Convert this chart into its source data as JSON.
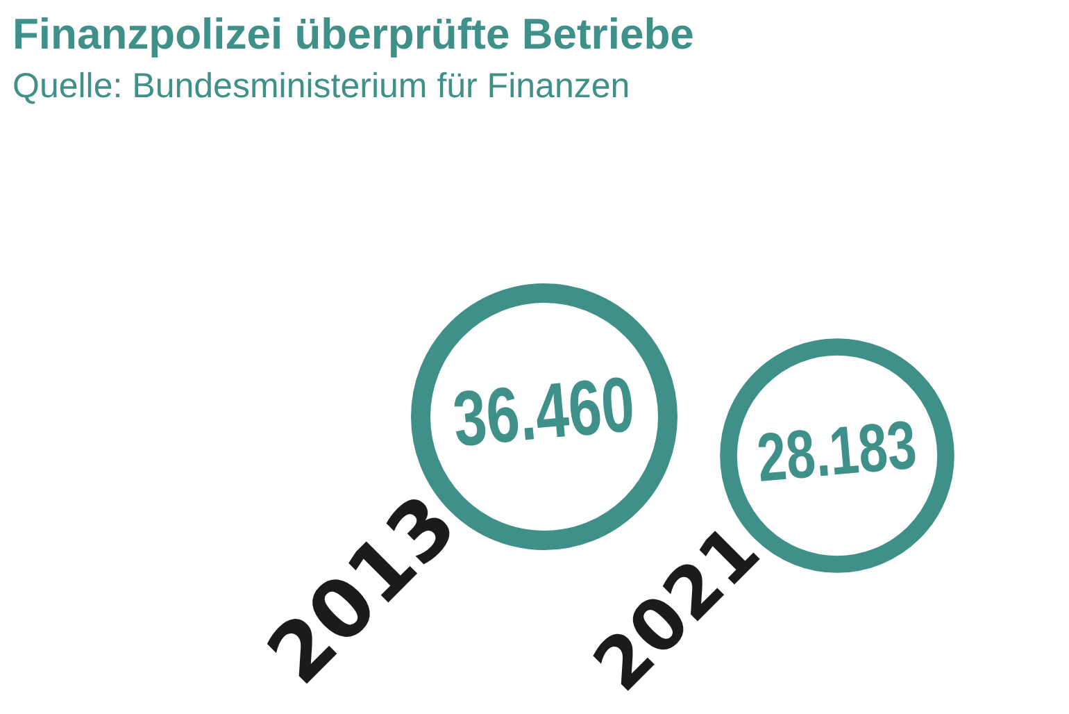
{
  "chart_data": {
    "type": "other",
    "title": "Finanzpolizei überprüfte Betriebe",
    "annotations": [
      "Quelle: Bundesministerium für Finanzen"
    ],
    "categories": [
      "2013",
      "2021"
    ],
    "values": [
      36460,
      28183
    ],
    "value_labels": [
      "36.460",
      "28.183"
    ],
    "color": "#3e9089"
  }
}
